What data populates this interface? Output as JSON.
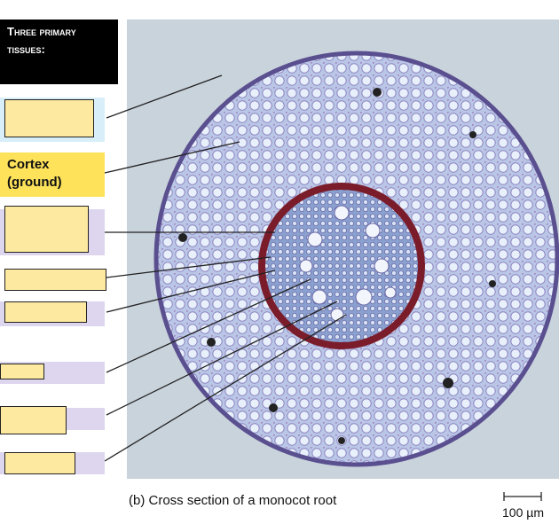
{
  "tissue_header": "Three primary tissues:",
  "cortex_label": "Cortex (ground)",
  "caption": "(b) Cross section of a monocot root",
  "scale_bar": "100 µm"
}
